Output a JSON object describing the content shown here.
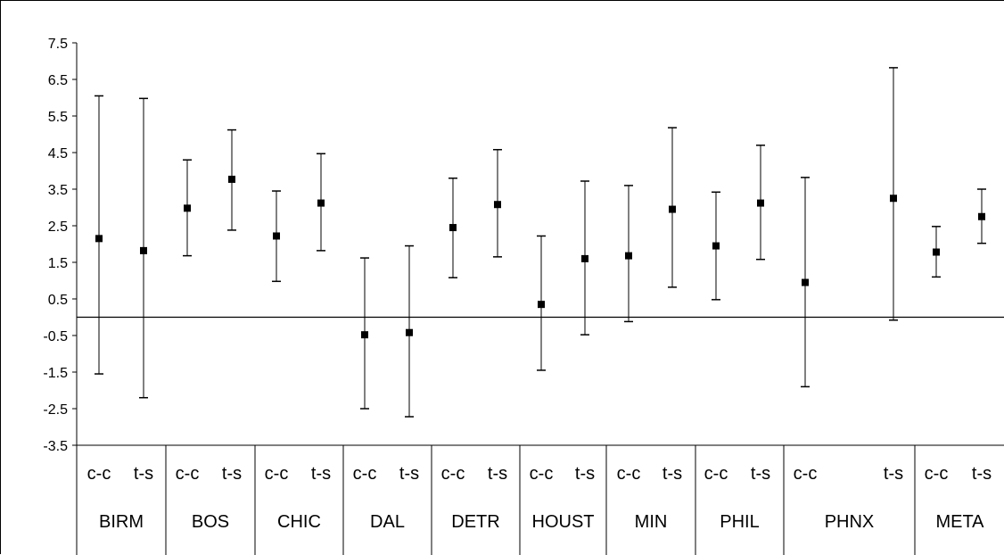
{
  "chart_data": {
    "type": "scatter",
    "title": "",
    "xlabel": "",
    "ylabel": "",
    "ylim": [
      -3.5,
      7.5
    ],
    "yticks": [
      "7.5",
      "6.5",
      "5.5",
      "4.5",
      "3.5",
      "2.5",
      "1.5",
      "0.5",
      "-0.5",
      "-1.5",
      "-2.5",
      "-3.5"
    ],
    "reference_line": 0,
    "grid": false,
    "legend": "none",
    "marker": "square",
    "groups": [
      {
        "name": "BIRM",
        "points": [
          {
            "label": "c-c",
            "mean": 2.15,
            "low": -1.55,
            "high": 6.05
          },
          {
            "label": "t-s",
            "mean": 1.82,
            "low": -2.2,
            "high": 5.98
          }
        ]
      },
      {
        "name": "BOS",
        "points": [
          {
            "label": "c-c",
            "mean": 2.98,
            "low": 1.68,
            "high": 4.3
          },
          {
            "label": "t-s",
            "mean": 3.77,
            "low": 2.38,
            "high": 5.12
          }
        ]
      },
      {
        "name": "CHIC",
        "points": [
          {
            "label": "c-c",
            "mean": 2.22,
            "low": 0.98,
            "high": 3.45
          },
          {
            "label": "t-s",
            "mean": 3.12,
            "low": 1.82,
            "high": 4.47
          }
        ]
      },
      {
        "name": "DAL",
        "points": [
          {
            "label": "c-c",
            "mean": -0.48,
            "low": -2.5,
            "high": 1.62
          },
          {
            "label": "t-s",
            "mean": -0.42,
            "low": -2.72,
            "high": 1.95
          }
        ]
      },
      {
        "name": "DETR",
        "points": [
          {
            "label": "c-c",
            "mean": 2.45,
            "low": 1.08,
            "high": 3.8
          },
          {
            "label": "t-s",
            "mean": 3.08,
            "low": 1.65,
            "high": 4.58
          }
        ]
      },
      {
        "name": "HOUST",
        "points": [
          {
            "label": "c-c",
            "mean": 0.35,
            "low": -1.45,
            "high": 2.22
          },
          {
            "label": "t-s",
            "mean": 1.6,
            "low": -0.48,
            "high": 3.72
          }
        ]
      },
      {
        "name": "MIN",
        "points": [
          {
            "label": "c-c",
            "mean": 1.68,
            "low": -0.12,
            "high": 3.6
          },
          {
            "label": "t-s",
            "mean": 2.95,
            "low": 0.82,
            "high": 5.18
          }
        ]
      },
      {
        "name": "PHIL",
        "points": [
          {
            "label": "c-c",
            "mean": 1.95,
            "low": 0.48,
            "high": 3.42
          },
          {
            "label": "t-s",
            "mean": 3.12,
            "low": 1.58,
            "high": 4.7
          }
        ]
      },
      {
        "name": "PHNX",
        "points": [
          {
            "label": "c-c",
            "mean": 0.95,
            "low": -1.9,
            "high": 3.82
          },
          {
            "label": "t-s",
            "mean": 3.25,
            "low": -0.08,
            "high": 6.82
          }
        ]
      },
      {
        "name": "META",
        "points": [
          {
            "label": "c-c",
            "mean": 1.78,
            "low": 1.1,
            "high": 2.48
          },
          {
            "label": "t-s",
            "mean": 2.75,
            "low": 2.02,
            "high": 3.5
          }
        ]
      }
    ]
  }
}
